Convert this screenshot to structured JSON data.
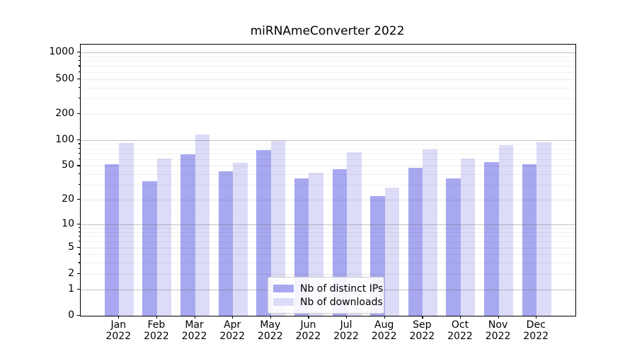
{
  "figure": {
    "title": "miRNAmeConverter 2022"
  },
  "chart_data": {
    "type": "bar",
    "title": "miRNAmeConverter 2022",
    "categories": [
      "Jan",
      "Feb",
      "Mar",
      "Apr",
      "May",
      "Jun",
      "Jul",
      "Aug",
      "Sep",
      "Oct",
      "Nov",
      "Dec"
    ],
    "category_year": "2022",
    "series": [
      {
        "name": "Nb of distinct IPs",
        "color": "#a8a8f0",
        "values": [
          52,
          33,
          68,
          43,
          77,
          36,
          46,
          22,
          48,
          36,
          55,
          52
        ]
      },
      {
        "name": "Nb of downloads",
        "color": "#dcdcf8",
        "values": [
          92,
          61,
          116,
          54,
          98,
          42,
          72,
          28,
          78,
          61,
          88,
          94
        ]
      }
    ],
    "xlabel": "",
    "ylabel": "",
    "y_scale": "log10(value+1)",
    "y_ticks": [
      0,
      1,
      2,
      5,
      10,
      20,
      50,
      100,
      200,
      500,
      1000
    ],
    "y_minor_ticks": [
      3,
      4,
      6,
      7,
      8,
      9,
      30,
      40,
      60,
      70,
      80,
      90,
      300,
      400,
      600,
      700,
      800,
      900
    ],
    "ylim": [
      0,
      1200
    ],
    "grid": "horizontal",
    "legend_position": "lower-center"
  },
  "colors": {
    "decade_gridline": "rgba(95,95,95,0.38)",
    "light_gridline": "rgba(0,0,0,0.09)",
    "minor_gridline": "rgba(0,0,0,0.055)",
    "axis": "#000000",
    "background": "#ffffff"
  }
}
